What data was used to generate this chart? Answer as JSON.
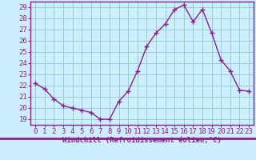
{
  "x": [
    0,
    1,
    2,
    3,
    4,
    5,
    6,
    7,
    8,
    9,
    10,
    11,
    12,
    13,
    14,
    15,
    16,
    17,
    18,
    19,
    20,
    21,
    22,
    23
  ],
  "y": [
    22.2,
    21.7,
    20.8,
    20.2,
    20.0,
    19.8,
    19.6,
    19.0,
    19.0,
    20.6,
    21.5,
    23.3,
    25.5,
    26.7,
    27.5,
    28.8,
    29.2,
    27.7,
    28.8,
    26.7,
    24.3,
    23.3,
    21.6,
    21.5
  ],
  "line_color": "#882288",
  "marker": "+",
  "markersize": 4,
  "linewidth": 1.0,
  "bg_color": "#cceeff",
  "grid_color": "#99cccc",
  "tick_label_color": "#882288",
  "xlabel": "Windchill (Refroidissement éolien,°C)",
  "ylabel": "",
  "title": "",
  "xlim": [
    -0.5,
    23.5
  ],
  "ylim": [
    18.5,
    29.5
  ],
  "yticks": [
    19,
    20,
    21,
    22,
    23,
    24,
    25,
    26,
    27,
    28,
    29
  ],
  "xticks": [
    0,
    1,
    2,
    3,
    4,
    5,
    6,
    7,
    8,
    9,
    10,
    11,
    12,
    13,
    14,
    15,
    16,
    17,
    18,
    19,
    20,
    21,
    22,
    23
  ],
  "xlabel_color": "#882288",
  "xlabel_fontsize": 6.5,
  "tick_fontsize": 6.5,
  "spine_color": "#882288"
}
